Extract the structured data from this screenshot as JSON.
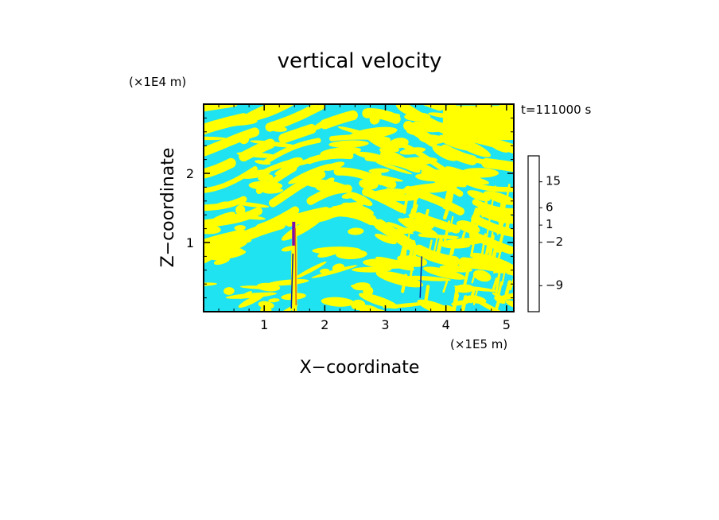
{
  "chart_data": {
    "type": "heatmap",
    "title": "vertical velocity",
    "xlabel": "X−coordinate",
    "ylabel": "Z−coordinate",
    "x_unit": "(×1E5 m)",
    "y_unit": "(×1E4 m)",
    "time_label": "t=111000 s",
    "xlim": [
      0,
      5.12
    ],
    "ylim": [
      0,
      3.0
    ],
    "x_ticks": [
      1,
      2,
      3,
      4,
      5
    ],
    "y_ticks": [
      1,
      2
    ],
    "colorbar": {
      "colors": [
        "#e6169e",
        "#d31bb0",
        "#b51ec2",
        "#7a10b4",
        "#3a1ba5",
        "#0b1f9a",
        "#1f66d8",
        "#1eaae8",
        "#1fe3f0",
        "#fffc00",
        "#f5e100",
        "#ffc000",
        "#e46a10",
        "#e41c0c",
        "#ef6a70",
        "#f4a8a8",
        "#fcdcdc",
        "#fff4f4"
      ],
      "tick_labels": [
        "15",
        "6",
        "1",
        "−2",
        "−9"
      ],
      "tick_values": [
        15,
        6,
        1,
        -2,
        -9
      ],
      "tick_segment_index": [
        14,
        11,
        9,
        7,
        2
      ]
    },
    "field_colors": {
      "positive": "#ffff00",
      "negative": "#1fe3f0"
    },
    "features": [
      {
        "name": "strong updraft/downdraft column",
        "x": 1.5,
        "z_range": [
          0,
          1.3
        ]
      },
      {
        "name": "secondary updraft column",
        "x": 3.6,
        "z_range": [
          0.2,
          0.8
        ]
      }
    ]
  }
}
